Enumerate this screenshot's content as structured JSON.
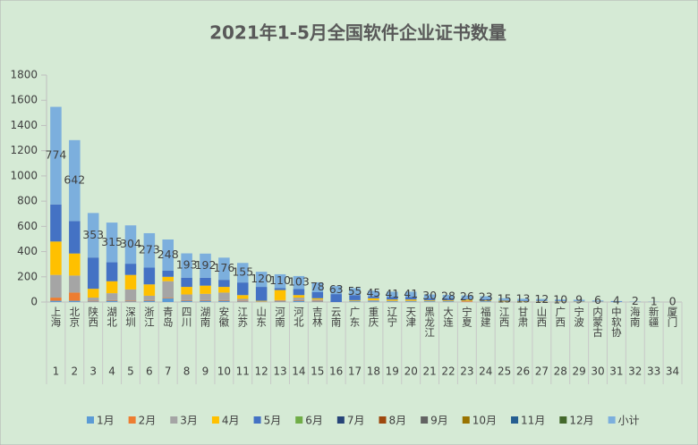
{
  "chart_data": {
    "type": "stacked_bar",
    "title": "2021年1-5月全国软件企业证书数量",
    "categories": [
      "上海",
      "北京",
      "陕西",
      "湖北",
      "深圳",
      "浙江",
      "青岛",
      "四川",
      "湖南",
      "安徽",
      "江苏",
      "山东",
      "河南",
      "河北",
      "吉林",
      "云南",
      "广东",
      "重庆",
      "辽宁",
      "天津",
      "黑龙江",
      "大连",
      "宁夏",
      "福建",
      "江西",
      "甘肃",
      "山西",
      "广西",
      "宁波",
      "内蒙古",
      "中软协",
      "海南",
      "新疆",
      "厦门"
    ],
    "category_numbers": [
      1,
      2,
      3,
      4,
      5,
      6,
      7,
      8,
      9,
      10,
      11,
      12,
      13,
      14,
      15,
      16,
      17,
      18,
      19,
      20,
      21,
      22,
      23,
      24,
      25,
      26,
      27,
      28,
      29,
      30,
      31,
      32,
      33,
      34
    ],
    "series": [
      {
        "name": "1月",
        "color": "#5b9bd5",
        "values": [
          10,
          10,
          5,
          10,
          5,
          10,
          30,
          10,
          10,
          10,
          5,
          0,
          5,
          10,
          5,
          0,
          5,
          5,
          5,
          5,
          5,
          5,
          0,
          5,
          0,
          0,
          2,
          2,
          2,
          1,
          0,
          0,
          0,
          0
        ]
      },
      {
        "name": "2月",
        "color": "#ed7d31",
        "values": [
          25,
          65,
          5,
          5,
          5,
          5,
          5,
          5,
          5,
          5,
          5,
          0,
          5,
          5,
          5,
          0,
          0,
          0,
          0,
          0,
          0,
          0,
          5,
          0,
          0,
          0,
          0,
          0,
          0,
          0,
          0,
          0,
          0,
          0
        ]
      },
      {
        "name": "3月",
        "color": "#a5a5a5",
        "values": [
          180,
          135,
          25,
          55,
          90,
          35,
          130,
          45,
          50,
          60,
          15,
          5,
          5,
          20,
          10,
          0,
          5,
          10,
          5,
          5,
          5,
          5,
          5,
          5,
          5,
          5,
          3,
          3,
          2,
          2,
          0,
          1,
          0,
          0
        ]
      },
      {
        "name": "4月",
        "color": "#ffc000",
        "values": [
          265,
          175,
          70,
          95,
          115,
          90,
          35,
          60,
          65,
          45,
          30,
          5,
          80,
          20,
          10,
          0,
          5,
          15,
          10,
          10,
          5,
          5,
          10,
          5,
          5,
          3,
          3,
          2,
          2,
          1,
          0,
          0,
          0,
          0
        ]
      },
      {
        "name": "5月",
        "color": "#4472c4",
        "values": [
          294,
          257,
          248,
          150,
          89,
          133,
          48,
          73,
          62,
          56,
          100,
          110,
          15,
          48,
          48,
          63,
          40,
          15,
          21,
          21,
          15,
          13,
          6,
          8,
          5,
          5,
          4,
          3,
          3,
          2,
          4,
          1,
          1,
          0
        ]
      },
      {
        "name": "6月",
        "color": "#70ad47",
        "values": [
          0,
          0,
          0,
          0,
          0,
          0,
          0,
          0,
          0,
          0,
          0,
          0,
          0,
          0,
          0,
          0,
          0,
          0,
          0,
          0,
          0,
          0,
          0,
          0,
          0,
          0,
          0,
          0,
          0,
          0,
          0,
          0,
          0,
          0
        ]
      },
      {
        "name": "7月",
        "color": "#264478",
        "values": [
          0,
          0,
          0,
          0,
          0,
          0,
          0,
          0,
          0,
          0,
          0,
          0,
          0,
          0,
          0,
          0,
          0,
          0,
          0,
          0,
          0,
          0,
          0,
          0,
          0,
          0,
          0,
          0,
          0,
          0,
          0,
          0,
          0,
          0
        ]
      },
      {
        "name": "8月",
        "color": "#9e480e",
        "values": [
          0,
          0,
          0,
          0,
          0,
          0,
          0,
          0,
          0,
          0,
          0,
          0,
          0,
          0,
          0,
          0,
          0,
          0,
          0,
          0,
          0,
          0,
          0,
          0,
          0,
          0,
          0,
          0,
          0,
          0,
          0,
          0,
          0,
          0
        ]
      },
      {
        "name": "9月",
        "color": "#636363",
        "values": [
          0,
          0,
          0,
          0,
          0,
          0,
          0,
          0,
          0,
          0,
          0,
          0,
          0,
          0,
          0,
          0,
          0,
          0,
          0,
          0,
          0,
          0,
          0,
          0,
          0,
          0,
          0,
          0,
          0,
          0,
          0,
          0,
          0,
          0
        ]
      },
      {
        "name": "10月",
        "color": "#997300",
        "values": [
          0,
          0,
          0,
          0,
          0,
          0,
          0,
          0,
          0,
          0,
          0,
          0,
          0,
          0,
          0,
          0,
          0,
          0,
          0,
          0,
          0,
          0,
          0,
          0,
          0,
          0,
          0,
          0,
          0,
          0,
          0,
          0,
          0,
          0
        ]
      },
      {
        "name": "11月",
        "color": "#255e91",
        "values": [
          0,
          0,
          0,
          0,
          0,
          0,
          0,
          0,
          0,
          0,
          0,
          0,
          0,
          0,
          0,
          0,
          0,
          0,
          0,
          0,
          0,
          0,
          0,
          0,
          0,
          0,
          0,
          0,
          0,
          0,
          0,
          0,
          0,
          0
        ]
      },
      {
        "name": "12月",
        "color": "#43682b",
        "values": [
          0,
          0,
          0,
          0,
          0,
          0,
          0,
          0,
          0,
          0,
          0,
          0,
          0,
          0,
          0,
          0,
          0,
          0,
          0,
          0,
          0,
          0,
          0,
          0,
          0,
          0,
          0,
          0,
          0,
          0,
          0,
          0,
          0,
          0
        ]
      },
      {
        "name": "小计",
        "color": "#7cafdd",
        "labeled": true,
        "values": [
          774,
          642,
          353,
          315,
          304,
          273,
          248,
          193,
          192,
          176,
          155,
          120,
          110,
          103,
          78,
          63,
          55,
          45,
          41,
          41,
          30,
          28,
          26,
          23,
          15,
          13,
          12,
          10,
          9,
          6,
          4,
          2,
          1,
          0
        ]
      }
    ],
    "ylim": [
      0,
      1800
    ],
    "yticks": [
      0,
      200,
      400,
      600,
      800,
      1000,
      1200,
      1400,
      1600,
      1800
    ]
  }
}
